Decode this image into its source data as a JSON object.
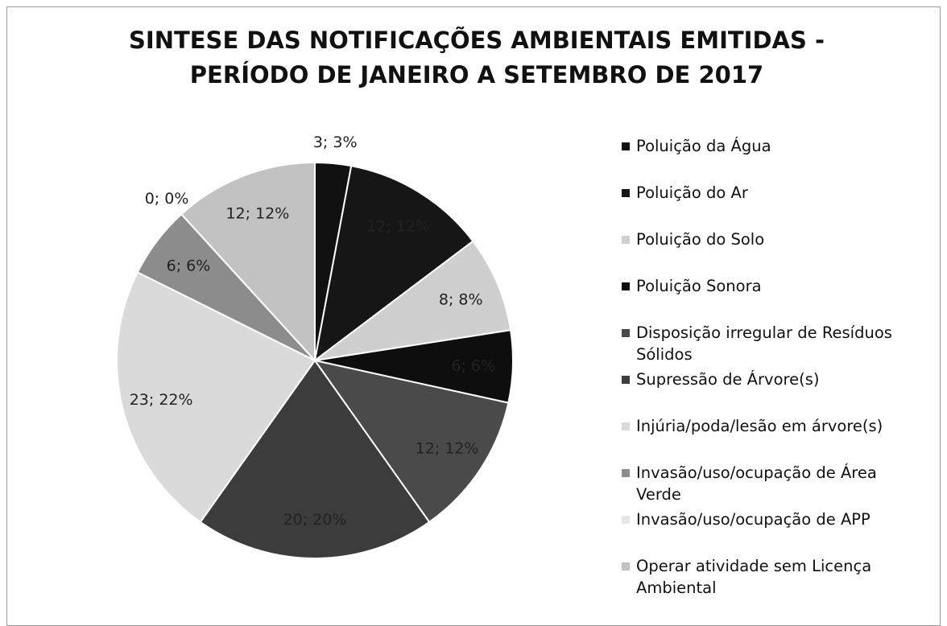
{
  "chart_data": {
    "type": "pie",
    "title": "SINTESE DAS NOTIFICAÇÕES AMBIENTAIS EMITIDAS -",
    "subtitle": "PERÍODO DE JANEIRO A SETEMBRO DE 2017",
    "categories": [
      "Poluição da Água",
      "Poluição do Ar",
      "Poluição do Solo",
      "Poluição Sonora",
      "Disposição irregular de Resíduos Sólidos",
      "Supressão de Árvore(s)",
      "Injúria/poda/lesão em árvore(s)",
      "Invasão/uso/ocupação de Área Verde",
      "Invasão/uso/ocupação de APP",
      "Operar atividade sem Licença Ambiental"
    ],
    "values": [
      3,
      12,
      8,
      6,
      12,
      20,
      23,
      6,
      0,
      12
    ],
    "value_labels": [
      "3; 3%",
      "12; 12%",
      "8; 8%",
      "6; 6%",
      "12; 12%",
      "20; 20%",
      "23; 22%",
      "6; 6%",
      "0; 0%",
      "12; 12%"
    ],
    "colors": [
      "#111111",
      "#161616",
      "#cfcfcf",
      "#0e0e0e",
      "#4a4a4a",
      "#3c3c3c",
      "#dadada",
      "#8c8c8c",
      "#e6e6e6",
      "#c2c2c2"
    ],
    "legend": "right"
  }
}
